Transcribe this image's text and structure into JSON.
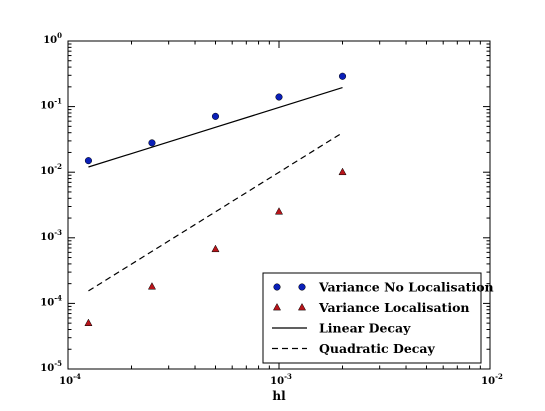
{
  "chart_data": {
    "type": "scatter",
    "title": "",
    "xlabel": "hl",
    "ylabel": "",
    "xscale": "log",
    "yscale": "log",
    "xlim": [
      0.0001,
      0.01
    ],
    "ylim": [
      1e-05,
      1
    ],
    "grid": false,
    "legend_position": "lower-right",
    "x_tick_labels": [
      {
        "value": 0.0001,
        "base": "10",
        "exp": "-4"
      },
      {
        "value": 0.001,
        "base": "10",
        "exp": "-3"
      },
      {
        "value": 0.01,
        "base": "10",
        "exp": "-2"
      }
    ],
    "y_tick_labels": [
      {
        "value": 1e-05,
        "base": "10",
        "exp": "-5"
      },
      {
        "value": 0.0001,
        "base": "10",
        "exp": "-4"
      },
      {
        "value": 0.001,
        "base": "10",
        "exp": "-3"
      },
      {
        "value": 0.01,
        "base": "10",
        "exp": "-2"
      },
      {
        "value": 0.1,
        "base": "10",
        "exp": "-1"
      },
      {
        "value": 1,
        "base": "10",
        "exp": "0"
      }
    ],
    "series": [
      {
        "name": "Variance No Localisation",
        "kind": "scatter",
        "marker": "circle",
        "color": "#0a1fb8",
        "x": [
          0.000125,
          0.00025,
          0.0005,
          0.001,
          0.002
        ],
        "y": [
          0.015,
          0.028,
          0.071,
          0.14,
          0.29
        ]
      },
      {
        "name": "Variance Localisation",
        "kind": "scatter",
        "marker": "triangle",
        "color": "#b8141a",
        "x": [
          0.000125,
          0.00025,
          0.0005,
          0.001,
          0.002
        ],
        "y": [
          5e-05,
          0.00018,
          0.00067,
          0.0025,
          0.01
        ]
      },
      {
        "name": "Linear Decay",
        "kind": "line",
        "dash": "solid",
        "color": "#000000",
        "x": [
          0.000125,
          0.002
        ],
        "y": [
          0.012,
          0.195
        ]
      },
      {
        "name": "Quadratic Decay",
        "kind": "line",
        "dash": "dashed",
        "color": "#000000",
        "x": [
          0.000125,
          0.002
        ],
        "y": [
          0.000155,
          0.04
        ]
      }
    ]
  }
}
